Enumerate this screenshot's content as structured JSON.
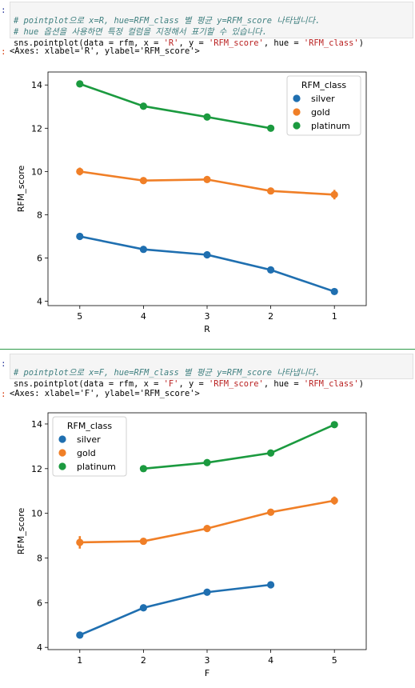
{
  "cells": [
    {
      "prompt": ":",
      "code": {
        "comment1": "# pointplot으로 x=R, hue=RFM_class 별 평균 y=RFM_score 나타냅니다.",
        "comment2": "# hue 옵션을 사용하면 특정 컬럼을 지정해서 표기할 수 있습니다.",
        "call": "sns.pointplot(data = rfm, x = ",
        "x_str": "'R'",
        "mid": ", y = ",
        "y_str": "'RFM_score'",
        "mid2": ", hue = ",
        "hue_str": "'RFM_class'",
        "end": ")"
      },
      "out_prompt": ":",
      "output": "<Axes: xlabel='R', ylabel='RFM_score'>"
    },
    {
      "prompt": ":",
      "code": {
        "comment1": "# pointplot으로 x=F, hue=RFM_class 별 평균 y=RFM_score 나타냅니다.",
        "call": "sns.pointplot(data = rfm, x = ",
        "x_str": "'F'",
        "mid": ", y = ",
        "y_str": "'RFM_score'",
        "mid2": ", hue = ",
        "hue_str": "'RFM_class'",
        "end": ")"
      },
      "out_prompt": ":",
      "output": "<Axes: xlabel='F', ylabel='RFM_score'>"
    }
  ],
  "colors": {
    "silver": "#1f6fb0",
    "gold": "#f07f27",
    "platinum": "#1b9a3f"
  },
  "chart_data": [
    {
      "type": "line",
      "xlabel": "R",
      "ylabel": "RFM_score",
      "categories": [
        "5",
        "4",
        "3",
        "2",
        "1"
      ],
      "ylim": [
        3.8,
        14.6
      ],
      "yticks": [
        4,
        6,
        8,
        10,
        12,
        14
      ],
      "legend_title": "RFM_class",
      "legend_position": "top-right",
      "series": [
        {
          "name": "silver",
          "values": [
            7.0,
            6.4,
            6.15,
            5.45,
            4.45
          ],
          "err": [
            0,
            0,
            0,
            0,
            0
          ]
        },
        {
          "name": "gold",
          "values": [
            10.0,
            9.58,
            9.63,
            9.1,
            8.93
          ],
          "err": [
            0.18,
            0.05,
            0.06,
            0.05,
            0.22
          ]
        },
        {
          "name": "platinum",
          "values": [
            14.05,
            13.02,
            12.52,
            12.0,
            null
          ],
          "err": [
            0,
            0,
            0,
            0,
            0
          ]
        }
      ]
    },
    {
      "type": "line",
      "xlabel": "F",
      "ylabel": "RFM_score",
      "categories": [
        "1",
        "2",
        "3",
        "4",
        "5"
      ],
      "ylim": [
        3.9,
        14.5
      ],
      "yticks": [
        4,
        6,
        8,
        10,
        12,
        14
      ],
      "legend_title": "RFM_class",
      "legend_position": "top-left",
      "series": [
        {
          "name": "silver",
          "values": [
            4.55,
            5.77,
            6.47,
            6.8,
            null
          ],
          "err": [
            0,
            0,
            0,
            0,
            0
          ]
        },
        {
          "name": "gold",
          "values": [
            8.7,
            8.75,
            9.32,
            10.05,
            10.57
          ],
          "err": [
            0.28,
            0.05,
            0.05,
            0.05,
            0.18
          ]
        },
        {
          "name": "platinum",
          "values": [
            null,
            12.0,
            12.27,
            12.7,
            13.97
          ],
          "err": [
            0,
            0,
            0,
            0,
            0
          ]
        }
      ]
    }
  ]
}
